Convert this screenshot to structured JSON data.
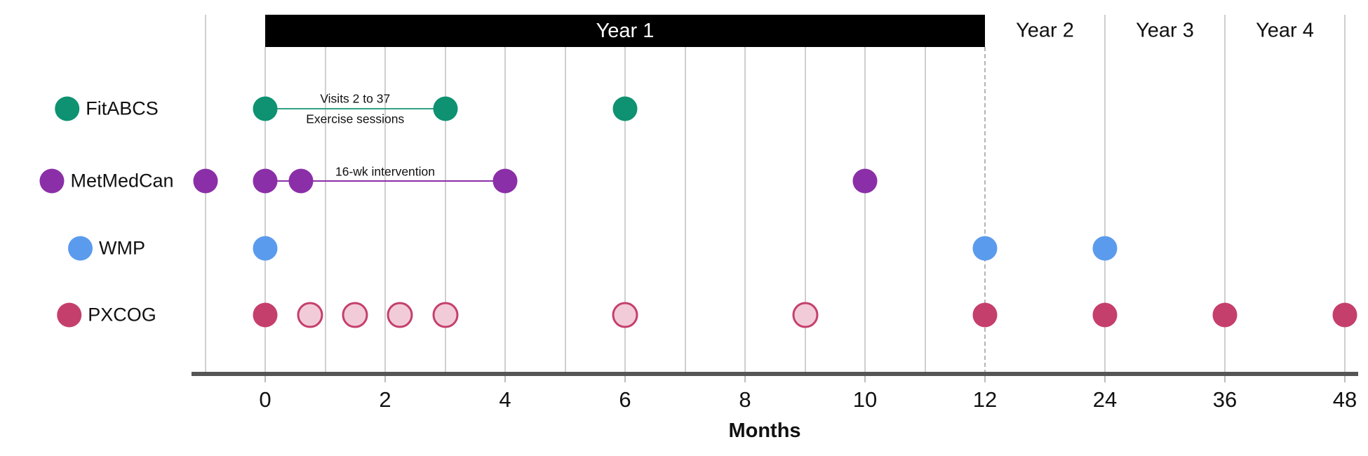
{
  "chart_data": {
    "type": "scatter",
    "subtype": "study-visit-timeline",
    "title": "",
    "xlabel": "Months",
    "x_ticks": [
      0,
      2,
      4,
      6,
      8,
      10,
      12,
      24,
      36,
      48
    ],
    "x_gridlines_monthly_range": [
      -1,
      12
    ],
    "x_axis_note": "linear month scale from -1 to 12, compressed yearly scale from 12 to 48",
    "dashed_line_at_month": 12,
    "year_bands": [
      {
        "label": "Year 1",
        "from": 0,
        "to": 12,
        "style": "filled-black-banner"
      },
      {
        "label": "Year 2",
        "from": 12,
        "to": 24
      },
      {
        "label": "Year 3",
        "from": 24,
        "to": 36
      },
      {
        "label": "Year 4",
        "from": 36,
        "to": 48
      }
    ],
    "series": [
      {
        "name": "FitABCS",
        "color": "#0E9271",
        "visit_months": [
          0,
          3,
          6
        ],
        "interval": {
          "from": 0,
          "to": 3,
          "line_color": "#35A186",
          "label_lines": [
            "Visits 2 to 37",
            "Exercise sessions"
          ]
        }
      },
      {
        "name": "MetMedCan",
        "color": "#8B2FA8",
        "visit_months": [
          -1,
          0,
          0.6,
          4,
          10
        ],
        "interval": {
          "from": 0,
          "to": 4,
          "line_color": "#8B2FA8",
          "label_lines": [
            "16-wk intervention"
          ]
        }
      },
      {
        "name": "WMP",
        "color": "#5B9BED",
        "visit_months": [
          0,
          12,
          24
        ]
      },
      {
        "name": "PXCOG",
        "color": "#C53F6C",
        "visit_months": [
          0,
          12,
          24,
          36,
          48
        ],
        "secondary_visit_months": [
          0.75,
          1.5,
          2.25,
          3,
          6,
          9
        ],
        "secondary_style": {
          "fill": "#F2CBD9",
          "stroke": "#C53F6C"
        }
      }
    ],
    "legend_position": "left of each row",
    "grid": true
  }
}
